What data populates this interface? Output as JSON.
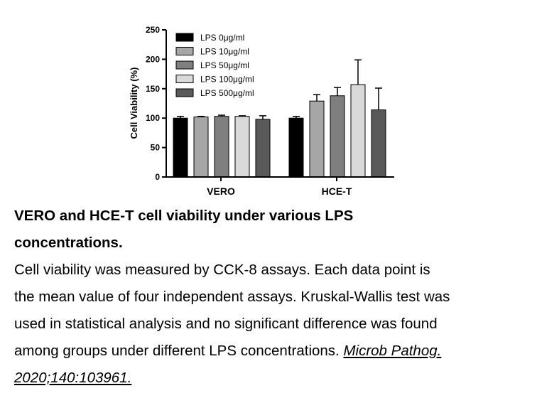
{
  "chart_data": {
    "type": "bar",
    "ylabel": "Cell Viability (%)",
    "ylim": [
      0,
      250
    ],
    "yticks": [
      0,
      50,
      100,
      150,
      200,
      250
    ],
    "categories": [
      "VERO",
      "HCE-T"
    ],
    "legend_position": "top-left",
    "series": [
      {
        "name": "LPS 0μg/ml",
        "color": "#000000",
        "values": [
          100,
          100
        ],
        "errors": [
          3,
          3
        ]
      },
      {
        "name": "LPS 10μg/ml",
        "color": "#a6a6a6",
        "values": [
          102,
          129
        ],
        "errors": [
          1,
          11
        ]
      },
      {
        "name": "LPS 50μg/ml",
        "color": "#7f7f7f",
        "values": [
          103,
          138
        ],
        "errors": [
          2,
          14
        ]
      },
      {
        "name": "LPS 100μg/ml",
        "color": "#d9d9d9",
        "values": [
          103,
          157
        ],
        "errors": [
          1,
          42
        ]
      },
      {
        "name": "LPS 500μg/ml",
        "color": "#595959",
        "values": [
          98,
          114
        ],
        "errors": [
          6,
          37
        ]
      }
    ]
  },
  "caption": {
    "title_line1": "VERO and HCE-T cell viability under various LPS",
    "title_line2": "concentrations.",
    "body_line1": "Cell viability was measured by CCK-8 assays. Each data point is",
    "body_line2": "the mean value of four independent assays. Kruskal-Wallis test was",
    "body_line3": "used in statistical analysis and no significant difference was found",
    "body_line4_text": "among groups under different LPS concentrations. ",
    "citation_part1": "Microb Pathog. ",
    "citation_part2": "2020;140:103961. "
  }
}
